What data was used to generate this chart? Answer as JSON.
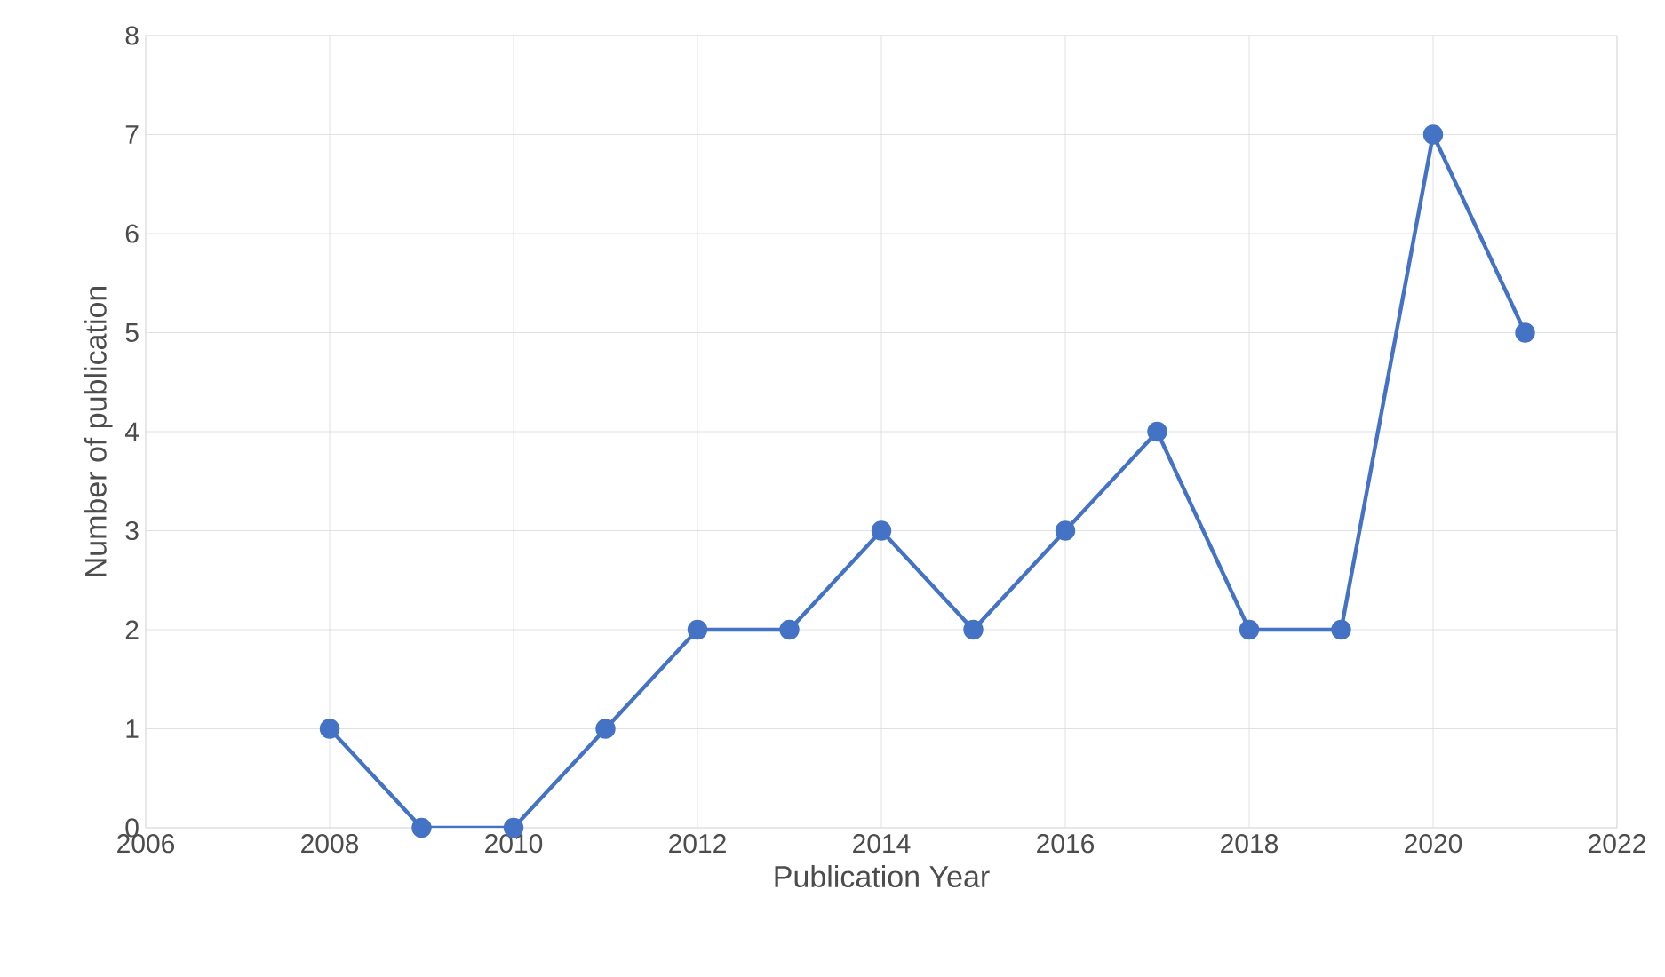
{
  "chart_data": {
    "type": "line",
    "xlabel": "Publication Year",
    "ylabel": "Number of publication",
    "x": [
      2008,
      2009,
      2010,
      2011,
      2012,
      2013,
      2014,
      2015,
      2016,
      2017,
      2018,
      2019,
      2020,
      2021
    ],
    "values": [
      1,
      0,
      0,
      1,
      2,
      2,
      3,
      2,
      3,
      4,
      2,
      2,
      7,
      5
    ],
    "color": "#4472c4",
    "marker": "circle",
    "line_style": "solid",
    "xlim": [
      2006,
      2022
    ],
    "xticks": [
      2006,
      2008,
      2010,
      2012,
      2014,
      2016,
      2018,
      2020,
      2022
    ],
    "ylim": [
      0,
      8
    ],
    "yticks": [
      0,
      1,
      2,
      3,
      4,
      5,
      6,
      7,
      8
    ],
    "grid": true
  }
}
